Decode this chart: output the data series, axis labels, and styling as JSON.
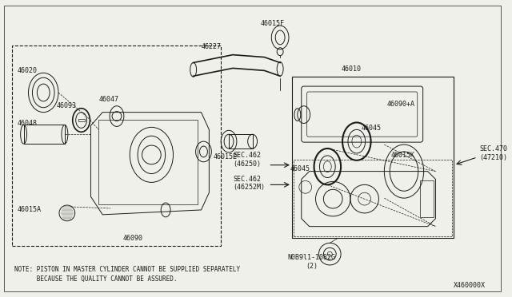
{
  "bg_color": "#f0f0eb",
  "line_color": "#1a1a1a",
  "note_line1": "NOTE: PISTON IN MASTER CYLINDER CANNOT BE SUPPLIED SEPARATELY",
  "note_line2": "      BECAUSE THE QUALITY CANNOT BE ASSURED.",
  "diagram_id": "X460000X",
  "figsize": [
    6.4,
    3.72
  ],
  "dpi": 100,
  "border_color": "#cccccc"
}
